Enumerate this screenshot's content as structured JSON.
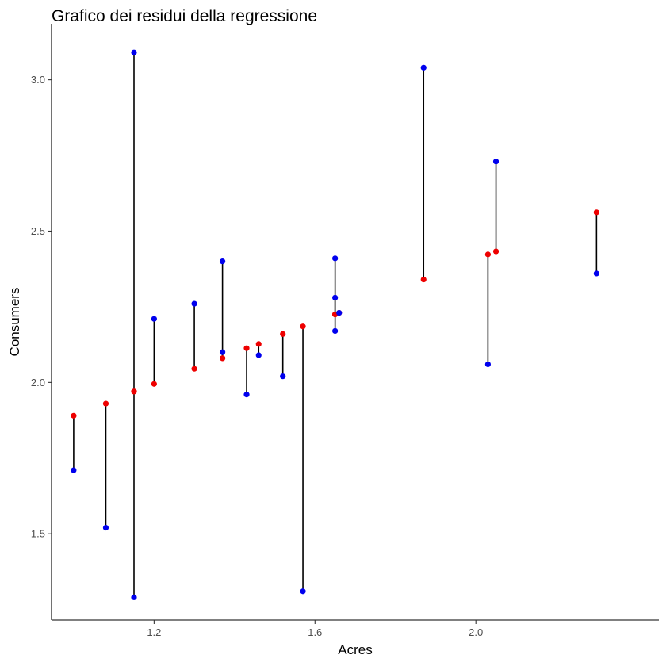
{
  "chart_data": {
    "type": "scatter",
    "title": "Grafico dei residui della regressione",
    "xlabel": "Acres",
    "ylabel": "Consumers",
    "xlim": [
      0.945,
      2.455
    ],
    "ylim": [
      1.215,
      3.185
    ],
    "xticks": [
      1.2,
      1.6,
      2.0
    ],
    "xtick_labels": [
      "1.2",
      "1.6",
      "2.0"
    ],
    "yticks": [
      1.5,
      2.0,
      2.5,
      3.0
    ],
    "ytick_labels": [
      "1.5",
      "2.0",
      "2.5",
      "3.0"
    ],
    "grid": false,
    "legend": "none",
    "colors": {
      "observed": "#0000ee",
      "fitted": "#ee0000",
      "residual_line": "#000000"
    },
    "points": [
      {
        "x": 1.0,
        "observed": 1.71,
        "fitted": 1.89
      },
      {
        "x": 1.08,
        "observed": 1.52,
        "fitted": 1.93
      },
      {
        "x": 1.15,
        "observed": 3.09,
        "fitted": 1.97
      },
      {
        "x": 1.15,
        "observed": 1.29,
        "fitted": 1.97
      },
      {
        "x": 1.2,
        "observed": 2.21,
        "fitted": 1.995
      },
      {
        "x": 1.3,
        "observed": 2.26,
        "fitted": 2.045
      },
      {
        "x": 1.37,
        "observed": 2.4,
        "fitted": 2.08
      },
      {
        "x": 1.37,
        "observed": 2.1,
        "fitted": 2.08
      },
      {
        "x": 1.43,
        "observed": 1.96,
        "fitted": 2.113
      },
      {
        "x": 1.46,
        "observed": 2.09,
        "fitted": 2.127
      },
      {
        "x": 1.52,
        "observed": 2.02,
        "fitted": 2.16
      },
      {
        "x": 1.57,
        "observed": 1.31,
        "fitted": 2.185
      },
      {
        "x": 1.65,
        "observed": 2.41,
        "fitted": 2.225
      },
      {
        "x": 1.65,
        "observed": 2.28,
        "fitted": 2.225
      },
      {
        "x": 1.65,
        "observed": 2.17,
        "fitted": 2.225
      },
      {
        "x": 1.66,
        "observed": 2.23,
        "fitted": 2.23
      },
      {
        "x": 1.87,
        "observed": 3.04,
        "fitted": 2.34
      },
      {
        "x": 2.03,
        "observed": 2.06,
        "fitted": 2.423
      },
      {
        "x": 2.05,
        "observed": 2.73,
        "fitted": 2.433
      },
      {
        "x": 2.3,
        "observed": 2.36,
        "fitted": 2.562
      }
    ]
  }
}
